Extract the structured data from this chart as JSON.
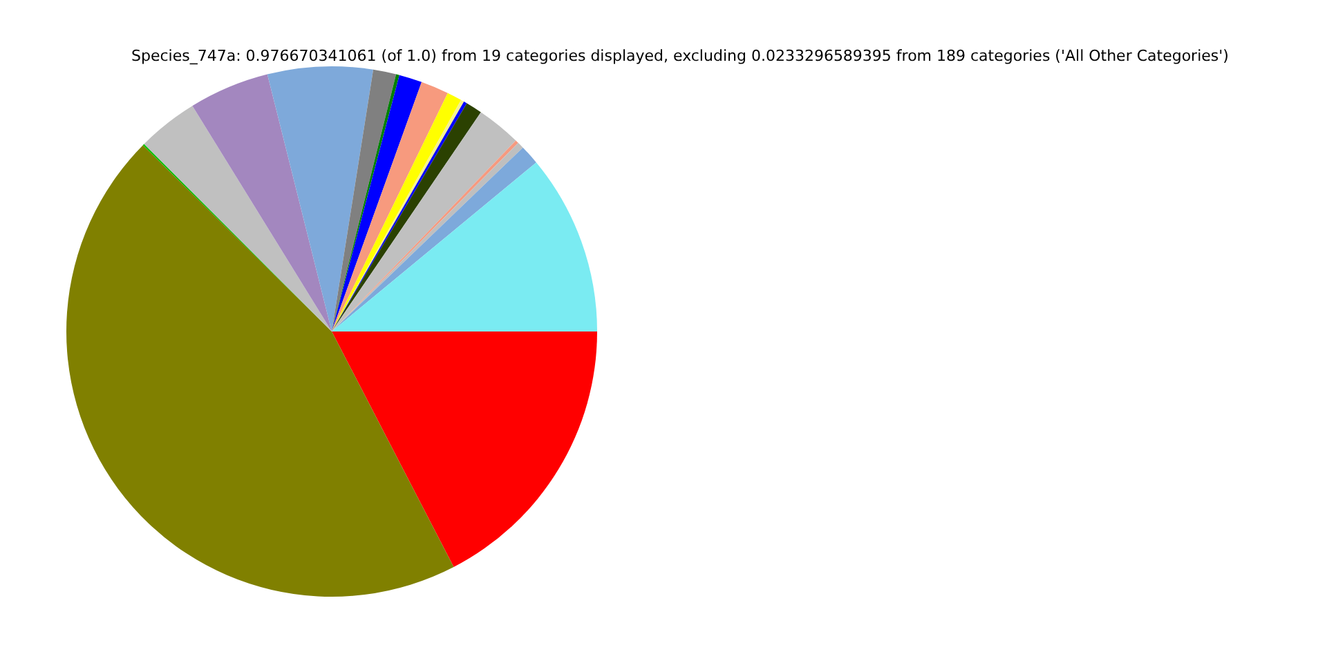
{
  "chart_data": {
    "type": "pie",
    "title": "Species_747a: 0.976670341061 (of 1.0) from 19 categories displayed, excluding 0.0233296589395 from 189 categories ('All Other Categories')",
    "categories": [
      null,
      null,
      null,
      null,
      null,
      null,
      null,
      null,
      null,
      null,
      null,
      null,
      null,
      null,
      null,
      null,
      null,
      null,
      null
    ],
    "values": [
      11.0,
      1.2,
      0.4,
      0.2,
      2.7,
      1.0,
      0.2,
      0.2,
      0.9,
      1.7,
      1.4,
      0.2,
      1.4,
      6.4,
      4.9,
      3.7,
      0.1,
      45.0,
      17.4
    ],
    "colors": [
      "#7aebf2",
      "#7da9db",
      "#bfbfbf",
      "#f59a80",
      "#c0c0c0",
      "#2b4101",
      "#0000ff",
      "#f5f090",
      "#ffff00",
      "#f79a7e",
      "#0000ff",
      "#008000",
      "#808080",
      "#7ea9da",
      "#a387bf",
      "#c0c0c0",
      "#00c000",
      "#808000",
      "#ff0000"
    ],
    "legend": false
  }
}
